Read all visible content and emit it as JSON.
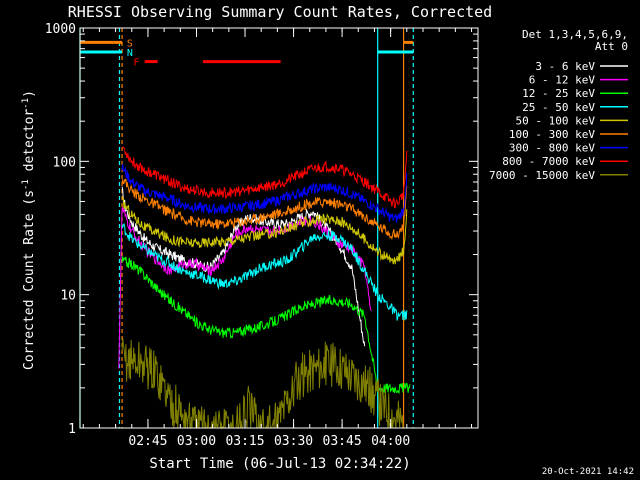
{
  "chart_data": {
    "type": "line",
    "title": "RHESSI Observing Summary Count Rates, Corrected",
    "xlabel": "Start Time (06-Jul-13 02:34:22)",
    "ylabel_parts": [
      "Corrected Count Rate (s",
      "-1",
      " detector",
      "-1",
      ")"
    ],
    "y_scale": "log",
    "ylim": [
      1,
      1000
    ],
    "y_ticks": [
      {
        "value": 1,
        "label": "1"
      },
      {
        "value": 10,
        "label": "10"
      },
      {
        "value": 100,
        "label": "100"
      },
      {
        "value": 1000,
        "label": "1000"
      }
    ],
    "xlim_minutes": [
      -10,
      113
    ],
    "x_ticks": [
      {
        "minute": 11,
        "label": "02:45"
      },
      {
        "minute": 26,
        "label": "03:00"
      },
      {
        "minute": 41,
        "label": "03:15"
      },
      {
        "minute": 56,
        "label": "03:30"
      },
      {
        "minute": 71,
        "label": "03:45"
      },
      {
        "minute": 86,
        "label": "04:00"
      }
    ],
    "legend_header": [
      "Det 1,3,4,5,6,9,",
      "Att 0"
    ],
    "legend_position": "right",
    "series": [
      {
        "name": "3 - 6 keV",
        "color": "#ffffff",
        "x": [
          3,
          4,
          6,
          10,
          14,
          18,
          22,
          26,
          30,
          34,
          38,
          42,
          46,
          50,
          54,
          58,
          62,
          66,
          70,
          74,
          78
        ],
        "y": [
          60,
          45,
          35,
          26,
          22,
          20,
          18,
          17,
          16,
          20,
          32,
          38,
          36,
          34,
          34,
          38,
          42,
          32,
          24,
          16,
          4
        ]
      },
      {
        "name": "6 - 12 keV",
        "color": "#ff00ff",
        "x": [
          2,
          3,
          4,
          6,
          10,
          14,
          18,
          22,
          26,
          30,
          34,
          38,
          42,
          46,
          50,
          54,
          58,
          62,
          66,
          70,
          74,
          78,
          80
        ],
        "y": [
          3,
          45,
          38,
          30,
          22,
          18,
          15,
          17,
          17,
          15,
          18,
          28,
          32,
          30,
          30,
          32,
          35,
          36,
          30,
          24,
          22,
          16,
          7
        ]
      },
      {
        "name": "12 - 25 keV",
        "color": "#00ff00",
        "x": [
          3,
          6,
          10,
          14,
          18,
          22,
          26,
          30,
          34,
          38,
          42,
          46,
          50,
          54,
          58,
          62,
          66,
          70,
          74,
          78,
          82,
          86,
          90,
          92
        ],
        "y": [
          18,
          17,
          14,
          11,
          9,
          7.5,
          6.2,
          5.5,
          5.2,
          5.2,
          5.5,
          5.8,
          6.3,
          7,
          8,
          8.5,
          9,
          9,
          8.5,
          7,
          2,
          2,
          2,
          2
        ]
      },
      {
        "name": "25 - 50 keV",
        "color": "#00ffff",
        "x": [
          3,
          6,
          10,
          14,
          18,
          22,
          26,
          30,
          34,
          38,
          42,
          46,
          50,
          54,
          58,
          62,
          66,
          70,
          74,
          78,
          82,
          86,
          88,
          91
        ],
        "y": [
          33,
          26,
          22,
          19,
          17,
          15,
          14,
          13,
          12,
          12.5,
          14,
          16,
          17,
          18,
          22,
          27,
          28,
          27,
          22,
          15,
          10,
          8,
          7,
          7
        ]
      },
      {
        "name": "50 - 100 keV",
        "color": "#d0c800",
        "x": [
          3,
          6,
          10,
          14,
          18,
          22,
          26,
          30,
          34,
          38,
          42,
          46,
          50,
          54,
          58,
          62,
          66,
          70,
          74,
          78,
          82,
          86,
          88,
          90,
          91
        ],
        "y": [
          50,
          40,
          32,
          29,
          26,
          25,
          24,
          25,
          25,
          26,
          27,
          28,
          29,
          31,
          34,
          36,
          37,
          36,
          32,
          26,
          21,
          18,
          18,
          22,
          40
        ]
      },
      {
        "name": "100 - 300 keV",
        "color": "#ff8000",
        "x": [
          3,
          6,
          10,
          14,
          18,
          22,
          26,
          30,
          34,
          38,
          42,
          46,
          50,
          54,
          58,
          62,
          66,
          70,
          74,
          78,
          82,
          86,
          88,
          90,
          91
        ],
        "y": [
          75,
          60,
          52,
          46,
          41,
          37,
          35,
          34,
          34,
          35,
          36,
          38,
          40,
          42,
          46,
          49,
          50,
          48,
          44,
          38,
          33,
          29,
          28,
          33,
          60
        ]
      },
      {
        "name": "300 - 800 keV",
        "color": "#0000ff",
        "x": [
          3,
          6,
          10,
          14,
          18,
          22,
          26,
          30,
          34,
          38,
          42,
          46,
          50,
          54,
          58,
          62,
          66,
          70,
          74,
          78,
          82,
          86,
          88,
          90,
          91
        ],
        "y": [
          90,
          70,
          60,
          56,
          52,
          47,
          45,
          44,
          44,
          45,
          46,
          48,
          50,
          54,
          58,
          62,
          64,
          62,
          57,
          50,
          44,
          38,
          37,
          43,
          75
        ]
      },
      {
        "name": "800 - 7000 keV",
        "color": "#ff0000",
        "x": [
          3,
          6,
          10,
          14,
          18,
          22,
          26,
          30,
          34,
          38,
          42,
          46,
          50,
          54,
          58,
          62,
          66,
          70,
          74,
          78,
          82,
          86,
          88,
          90,
          91
        ],
        "y": [
          130,
          100,
          86,
          78,
          70,
          63,
          60,
          58,
          58,
          59,
          61,
          64,
          67,
          72,
          80,
          88,
          92,
          89,
          80,
          70,
          60,
          50,
          48,
          58,
          110
        ]
      },
      {
        "name": "7000 - 15000 keV",
        "color": "#808000",
        "x": [
          3,
          6,
          10,
          14,
          18,
          22,
          26,
          30,
          34,
          38,
          42,
          46,
          50,
          54,
          58,
          62,
          66,
          70,
          74,
          78,
          82,
          86,
          90
        ],
        "y": [
          3.3,
          3.2,
          3,
          2.5,
          1.6,
          1.2,
          1,
          1,
          1,
          1,
          1.4,
          1,
          1,
          1.6,
          2.4,
          2.8,
          3,
          3,
          2.5,
          2.2,
          1.6,
          1.3,
          1.1
        ]
      }
    ],
    "flags": [
      {
        "label": "S",
        "color": "#ff8000",
        "y": 780,
        "segments": [
          [
            -10,
            3
          ],
          [
            90,
            93
          ]
        ],
        "label_minute": 4.5
      },
      {
        "label": "N",
        "color": "#00ffff",
        "y": 660,
        "segments": [
          [
            -10,
            3
          ],
          [
            82,
            93
          ]
        ],
        "label_minute": 4.5
      },
      {
        "label": "F",
        "color": "#ff0000",
        "y": 560,
        "segments": [
          [
            10,
            14
          ],
          [
            28,
            52
          ]
        ],
        "label_minute": 6.5
      }
    ],
    "state_lines": [
      {
        "minute": -10,
        "color": "#00ffff",
        "style": "solid"
      },
      {
        "minute": 2.2,
        "color": "#00ffff",
        "style": "dashed"
      },
      {
        "minute": 3,
        "color": "#ff8000",
        "style": "dashed"
      },
      {
        "minute": 82,
        "color": "#00ffff",
        "style": "solid"
      },
      {
        "minute": 90,
        "color": "#ff8000",
        "style": "solid"
      },
      {
        "minute": 93,
        "color": "#00ffff",
        "style": "dashed"
      }
    ]
  },
  "footer": {
    "timestamp": "20-Oct-2021 14:42"
  }
}
